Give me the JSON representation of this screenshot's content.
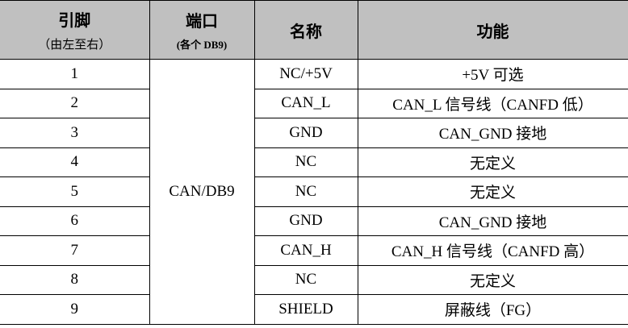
{
  "header": {
    "pin": "引脚",
    "pin_sub": "（由左至右）",
    "port": "端口",
    "port_sub": "(各个 DB9)",
    "name": "名称",
    "function": "功能"
  },
  "port_value": "CAN/DB9",
  "rows": [
    {
      "pin": "1",
      "name": "NC/+5V",
      "function": "+5V 可选"
    },
    {
      "pin": "2",
      "name": "CAN_L",
      "function": "CAN_L  信号线（CANFD 低）"
    },
    {
      "pin": "3",
      "name": "GND",
      "function": "CAN_GND 接地"
    },
    {
      "pin": "4",
      "name": "NC",
      "function": "无定义"
    },
    {
      "pin": "5",
      "name": "NC",
      "function": "无定义"
    },
    {
      "pin": "6",
      "name": "GND",
      "function": "CAN_GND  接地"
    },
    {
      "pin": "7",
      "name": "CAN_H",
      "function": "CAN_H  信号线（CANFD 高）"
    },
    {
      "pin": "8",
      "name": "NC",
      "function": "无定义"
    },
    {
      "pin": "9",
      "name": "SHIELD",
      "function": "屏蔽线（FG）"
    }
  ],
  "colors": {
    "header_bg": "#c0c0c0"
  }
}
